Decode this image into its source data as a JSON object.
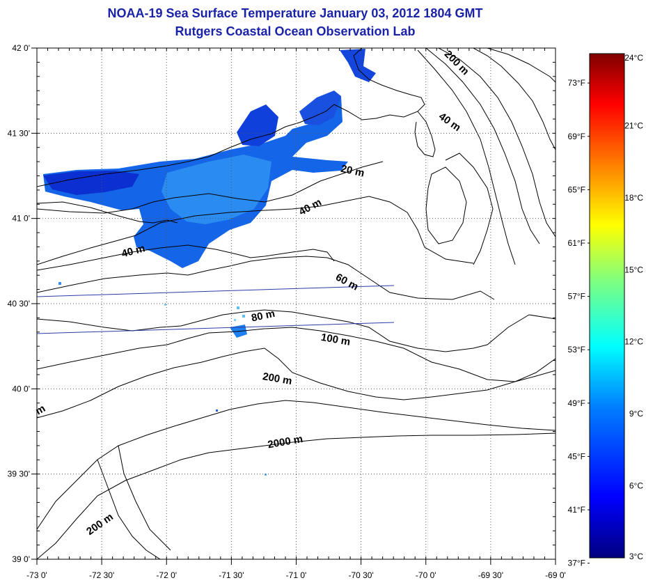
{
  "header": {
    "title": "NOAA-19 Sea Surface Temperature January 03, 2012 1804 GMT",
    "subtitle": "Rutgers Coastal Ocean Observation Lab"
  },
  "map": {
    "lon_range": [
      -73.0,
      -69.0
    ],
    "lat_range": [
      39.0,
      42.0
    ],
    "grid": "dotted",
    "lon_ticks": [
      {
        "lon": -73.0,
        "label": "-73 0'"
      },
      {
        "lon": -72.5,
        "label": "-72 30'"
      },
      {
        "lon": -72.0,
        "label": "-72 0'"
      },
      {
        "lon": -71.5,
        "label": "-71 30'"
      },
      {
        "lon": -71.0,
        "label": "-71 0'"
      },
      {
        "lon": -70.5,
        "label": "-70 30'"
      },
      {
        "lon": -70.0,
        "label": "-70 0'"
      },
      {
        "lon": -69.5,
        "label": "-69 30'"
      },
      {
        "lon": -69.0,
        "label": "-69 0'"
      }
    ],
    "lat_ticks": [
      {
        "lat": 42.0,
        "label": "42 0'"
      },
      {
        "lat": 41.5,
        "label": "41 30'"
      },
      {
        "lat": 41.0,
        "label": "41 0'"
      },
      {
        "lat": 40.5,
        "label": "40 30'"
      },
      {
        "lat": 40.0,
        "label": "40 0'"
      },
      {
        "lat": 39.5,
        "label": "39 30'"
      },
      {
        "lat": 39.0,
        "label": "39 0'"
      }
    ],
    "isobath_labels": [
      {
        "text": "200 m",
        "lon": -69.78,
        "lat": 41.9,
        "angle": 45
      },
      {
        "text": "40 m",
        "lon": -69.83,
        "lat": 41.55,
        "angle": 35
      },
      {
        "text": "20 m",
        "lon": -70.57,
        "lat": 41.26,
        "angle": 12
      },
      {
        "text": "40 m",
        "lon": -70.88,
        "lat": 41.05,
        "angle": -28
      },
      {
        "text": "40 m",
        "lon": -72.25,
        "lat": 40.79,
        "angle": -15
      },
      {
        "text": "60 m",
        "lon": -70.62,
        "lat": 40.61,
        "angle": 28
      },
      {
        "text": "80 m",
        "lon": -71.25,
        "lat": 40.41,
        "angle": -12
      },
      {
        "text": "100 m",
        "lon": -70.7,
        "lat": 40.27,
        "angle": 10
      },
      {
        "text": "200 m",
        "lon": -71.15,
        "lat": 40.04,
        "angle": 10
      },
      {
        "text": "2000 m",
        "lon": -71.08,
        "lat": 39.67,
        "angle": -10
      },
      {
        "text": "200 m",
        "lon": -72.5,
        "lat": 39.19,
        "angle": -35
      },
      {
        "text": "m",
        "lon": -72.96,
        "lat": 39.86,
        "angle": -30
      }
    ]
  },
  "colorbar": {
    "celsius_labels": [
      {
        "value": 24,
        "label": "24°C"
      },
      {
        "value": 21,
        "label": "21°C"
      },
      {
        "value": 18,
        "label": "18°C"
      },
      {
        "value": 15,
        "label": "15°C"
      },
      {
        "value": 12,
        "label": "12°C"
      },
      {
        "value": 9,
        "label": "9°C"
      },
      {
        "value": 6,
        "label": "6°C"
      },
      {
        "value": 3,
        "label": "3°C"
      }
    ],
    "fahrenheit_labels": [
      {
        "value": 73,
        "label": "73°F"
      },
      {
        "value": 69,
        "label": "69°F"
      },
      {
        "value": 65,
        "label": "65°F"
      },
      {
        "value": 61,
        "label": "61°F"
      },
      {
        "value": 57,
        "label": "57°F"
      },
      {
        "value": 53,
        "label": "53°F"
      },
      {
        "value": 49,
        "label": "49°F"
      },
      {
        "value": 45,
        "label": "45°F"
      },
      {
        "value": 41,
        "label": "41°F"
      },
      {
        "value": 37,
        "label": "37°F"
      }
    ],
    "range_c": [
      3,
      24
    ],
    "colors": [
      "#00007f",
      "#0000ff",
      "#007fff",
      "#00ffff",
      "#7fff7f",
      "#ffff00",
      "#ff7f00",
      "#ff0000",
      "#7f0000"
    ]
  }
}
